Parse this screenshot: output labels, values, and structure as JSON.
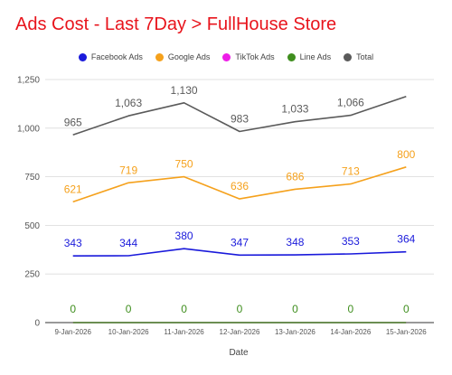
{
  "chart_data": {
    "type": "line",
    "title": "Ads Cost - Last 7Day > FullHouse Store",
    "title_color": "#e8141c",
    "xlabel": "Date",
    "ylabel": "",
    "ylim": [
      0,
      1300
    ],
    "y_ticks": [
      0,
      250,
      500,
      750,
      1000,
      1250
    ],
    "y_tick_labels": [
      "0",
      "250",
      "500",
      "750",
      "1,000",
      "1,250"
    ],
    "grid": true,
    "legend_position": "top-center",
    "categories": [
      "9-Jan-2026",
      "10-Jan-2026",
      "11-Jan-2026",
      "12-Jan-2026",
      "13-Jan-2026",
      "14-Jan-2026",
      "15-Jan-2026"
    ],
    "series": [
      {
        "name": "Facebook Ads",
        "color": "#1a1adb",
        "values": [
          343,
          344,
          380,
          347,
          348,
          353,
          364
        ],
        "labels": [
          "343",
          "344",
          "380",
          "347",
          "348",
          "353",
          "364"
        ]
      },
      {
        "name": "Google Ads",
        "color": "#f5a11c",
        "values": [
          621,
          719,
          750,
          636,
          686,
          713,
          800
        ],
        "labels": [
          "621",
          "719",
          "750",
          "636",
          "686",
          "713",
          "800"
        ]
      },
      {
        "name": "TikTok Ads",
        "color": "#ee1de8",
        "values": [
          0,
          0,
          0,
          0,
          0,
          0,
          0
        ],
        "labels": []
      },
      {
        "name": "Line Ads",
        "color": "#3f8e1e",
        "values": [
          0,
          0,
          0,
          0,
          0,
          0,
          0
        ],
        "labels": [
          "0",
          "0",
          "0",
          "0",
          "0",
          "0",
          "0"
        ]
      },
      {
        "name": "Total",
        "color": "#5a5a5a",
        "values": [
          965,
          1063,
          1130,
          983,
          1033,
          1066,
          1163
        ],
        "labels": [
          "965",
          "1,063",
          "1,130",
          "983",
          "1,033",
          "1,066",
          ""
        ]
      }
    ]
  }
}
